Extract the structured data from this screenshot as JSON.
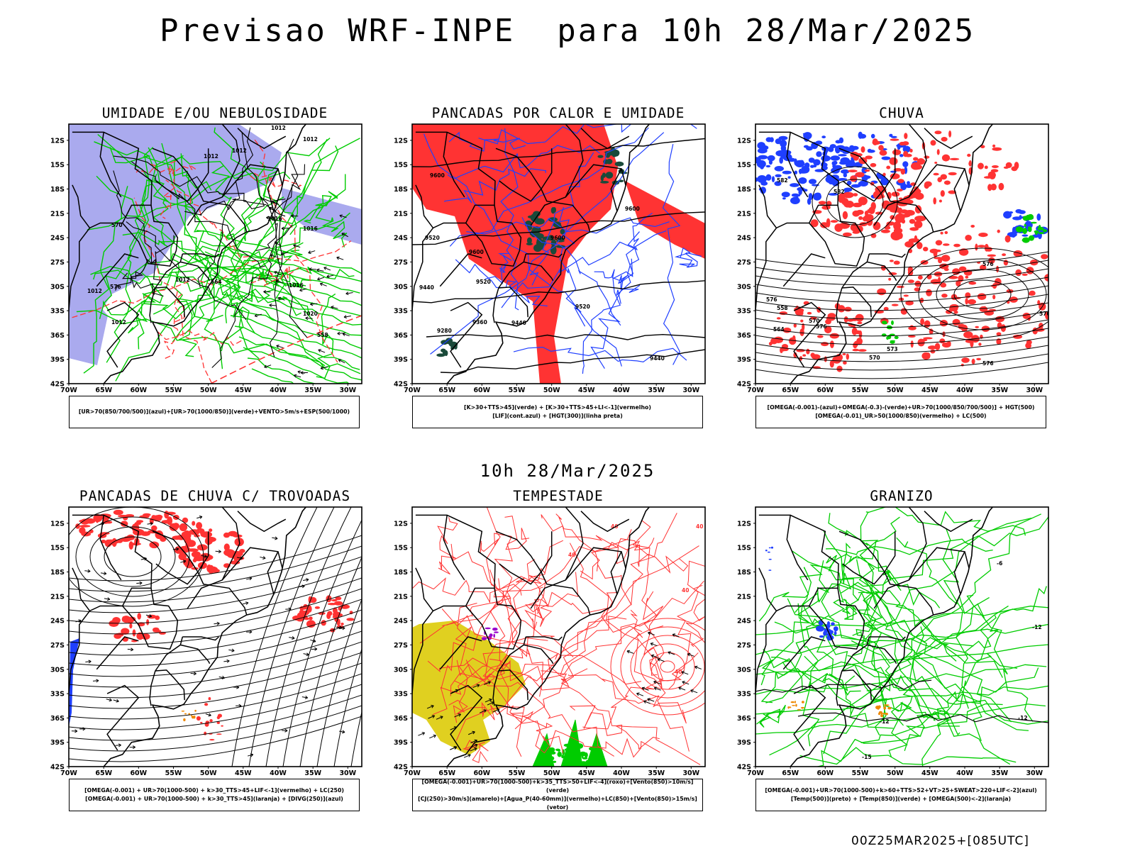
{
  "header": {
    "title": "Previsao WRF-INPE  para 10h 28/Mar/2025",
    "subtitle": "10h 28/Mar/2025",
    "footer": "00Z25MAR2025+[085UTC]"
  },
  "axes": {
    "lat_labels": [
      "12S",
      "15S",
      "18S",
      "21S",
      "24S",
      "27S",
      "30S",
      "33S",
      "36S",
      "39S",
      "42S"
    ],
    "lon_labels": [
      "70W",
      "65W",
      "60W",
      "55W",
      "50W",
      "45W",
      "40W",
      "35W",
      "30W"
    ]
  },
  "colors": {
    "green": "#00cc00",
    "red": "#ff3333",
    "lavender": "#aaaaee",
    "blue": "#1f3fff",
    "darkgreen": "#1a4a3a",
    "yellow": "#e0d020",
    "purple": "#9900cc",
    "orange": "#ee8800",
    "black": "#000000"
  },
  "panels": [
    {
      "id": "umidade",
      "title": "UMIDADE E/OU NEBULOSIDADE",
      "legend": [
        "[UR>70(850/700/500)](azul)+[UR>70(1000/850)](verde)+VENTO>5m/s+ESP(500/1000)"
      ],
      "contour_labels": [
        "1012",
        "1012",
        "1012",
        "1012",
        "1016",
        "1016",
        "1020",
        "1012",
        "1016",
        "1012",
        "1012",
        "576",
        "570",
        "564",
        "558"
      ]
    },
    {
      "id": "pancadas",
      "title": "PANCADAS POR CALOR E UMIDADE",
      "legend": [
        "[K>30+TTS>45](verde) + [K>30+TTS>45+LI<-1](vermelho)",
        "[LIF](cont.azul) + [HGT(300)](linha preta)"
      ],
      "contour_labels": [
        "9600",
        "9600",
        "9520",
        "9600",
        "9600",
        "9520",
        "9440",
        "9360",
        "9280",
        "9440",
        "9520",
        "9440"
      ]
    },
    {
      "id": "chuva",
      "title": "CHUVA",
      "legend": [
        "[OMEGA(-0.001)-(azul)+OMEGA(-0.3)-(verde)+UR>70(1000/850/700/500)] + HGT(500)",
        "[OMEGA(-0.01)_UR>50(1000/850)(vermelho) + LC(500)"
      ],
      "contour_labels": [
        "582",
        "582",
        "576",
        "576",
        "570",
        "564",
        "558",
        "576",
        "576",
        "576",
        "573",
        "570"
      ]
    },
    {
      "id": "trovoadas",
      "title": "PANCADAS DE CHUVA C/ TROVOADAS",
      "legend": [
        "[OMEGA(-0.001) + UR>70(1000-500) + k>30_TTS>45+LIF<-1](vermelho) + LC(250)",
        "[OMEGA(-0.001) + UR>70(1000-500) + k>30_TTS>45](laranja) + [DIVG(250)](azul)"
      ],
      "contour_labels": []
    },
    {
      "id": "tempestade",
      "title": "TEMPESTADE",
      "legend": [
        "[OMEGA(-0.001)+UR>70(1000-500)+k>35_TTS>50+LIF<-4](roxo)+[Vento(850)>10m/s](verde)",
        "[CJ(250)>30m/s](amarelo)+[Agua_P(40-60mm)](vermelho)+LC(850)+[Vento(850)>15m/s](vetor)"
      ],
      "contour_labels": [
        "40",
        "40",
        "40",
        "40",
        "40"
      ]
    },
    {
      "id": "granizo",
      "title": "GRANIZO",
      "legend": [
        "[OMEGA(-0.001)+UR>70(1000-500)+k>60+TTS>52+VT>25+SWEAT>220+LIF<-2](azul)",
        "[Temp(500)](preto) + [Temp(850)](verde) + [OMEGA(500)<-2](laranja)"
      ],
      "contour_labels": [
        "-12",
        "-12",
        "-12",
        "-15",
        "-6"
      ]
    }
  ]
}
